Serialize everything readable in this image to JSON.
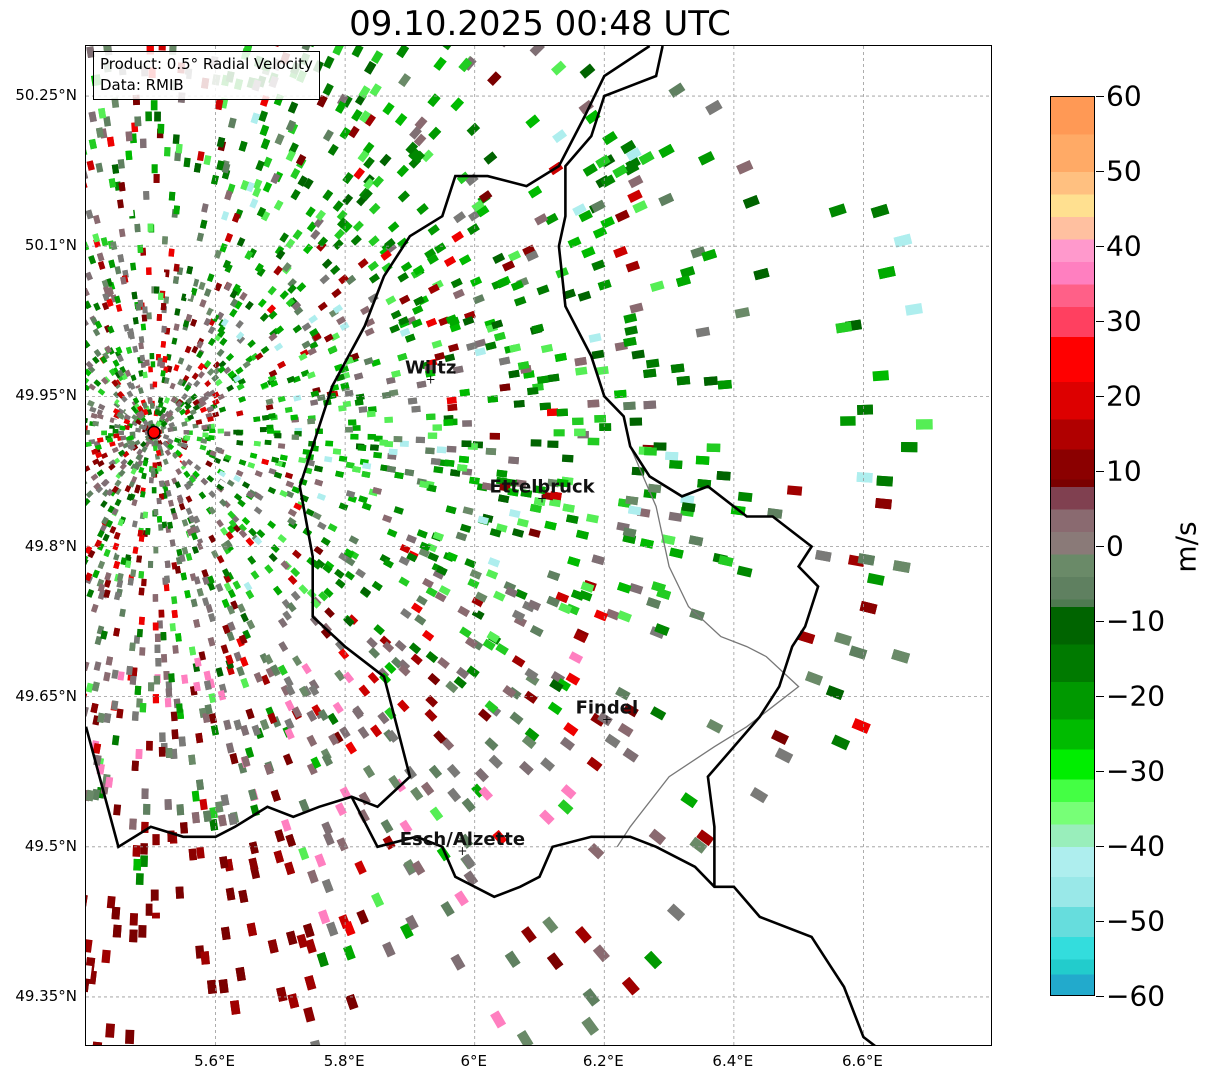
{
  "title": "09.10.2025 00:48 UTC",
  "info": {
    "product": "Product: 0.5° Radial Velocity",
    "source": "Data: RMIB"
  },
  "axes": {
    "lat_ticks": [
      "50.25°N",
      "50.1°N",
      "49.95°N",
      "49.8°N",
      "49.65°N",
      "49.5°N",
      "49.35°N"
    ],
    "lon_ticks": [
      "5.6°E",
      "5.8°E",
      "6°E",
      "6.2°E",
      "6.4°E",
      "6.6°E"
    ],
    "lat_range": [
      49.3,
      50.3
    ],
    "lon_range": [
      5.4,
      6.8
    ]
  },
  "colorbar": {
    "unit": "m/s",
    "range": [
      -60,
      60
    ],
    "tick_labels": [
      "60",
      "50",
      "40",
      "30",
      "20",
      "10",
      "0",
      "−10",
      "−20",
      "−30",
      "−40",
      "−50",
      "−60"
    ],
    "colors": {
      "high_orange": "#ff9955",
      "light_orange": "#ffcc88",
      "pink": "#ff7fc0",
      "red_pink": "#ff4060",
      "red": "#ee0000",
      "dark_red": "#7a0000",
      "mauve": "#8a6a70",
      "gray_green": "#5f8060",
      "dark_green": "#006400",
      "green": "#00cc00",
      "light_green": "#66ff66",
      "pale_cyan": "#aeeeee",
      "cyan": "#33dddd",
      "blue": "#2080c0"
    }
  },
  "radar": {
    "site_lat": 49.914,
    "site_lon": 5.505,
    "marker_color": "#ff0000"
  },
  "places": [
    {
      "name": "Wiltz",
      "lat": 49.967,
      "lon": 5.932
    },
    {
      "name": "Ettelbruck",
      "lat": 49.848,
      "lon": 6.104
    },
    {
      "name": "Findel",
      "lat": 49.627,
      "lon": 6.204
    },
    {
      "name": "Esch/Alzette",
      "lat": 49.496,
      "lon": 5.981
    }
  ]
}
